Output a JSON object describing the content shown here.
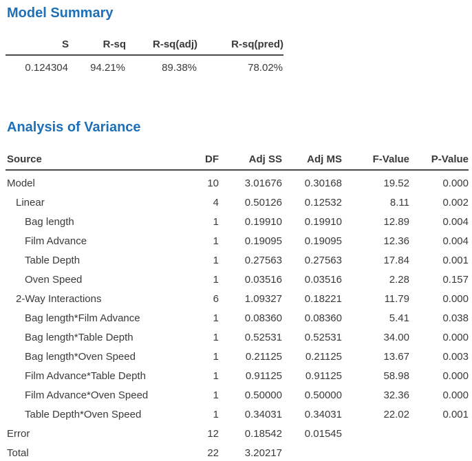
{
  "accent_color": "#1d70b8",
  "text_color": "#3a3a3a",
  "rule_color": "#4a4a4a",
  "model_summary": {
    "title": "Model Summary",
    "columns": [
      "S",
      "R-sq",
      "R-sq(adj)",
      "R-sq(pred)"
    ],
    "values": [
      "0.124304",
      "94.21%",
      "89.38%",
      "78.02%"
    ]
  },
  "anova": {
    "title": "Analysis of Variance",
    "columns": [
      "Source",
      "DF",
      "Adj SS",
      "Adj MS",
      "F-Value",
      "P-Value"
    ],
    "rows": [
      {
        "source": "Model",
        "indent": 0,
        "df": "10",
        "adj_ss": "3.01676",
        "adj_ms": "0.30168",
        "f_value": "19.52",
        "p_value": "0.000"
      },
      {
        "source": "Linear",
        "indent": 1,
        "df": "4",
        "adj_ss": "0.50126",
        "adj_ms": "0.12532",
        "f_value": "8.11",
        "p_value": "0.002"
      },
      {
        "source": "Bag length",
        "indent": 2,
        "df": "1",
        "adj_ss": "0.19910",
        "adj_ms": "0.19910",
        "f_value": "12.89",
        "p_value": "0.004"
      },
      {
        "source": "Film Advance",
        "indent": 2,
        "df": "1",
        "adj_ss": "0.19095",
        "adj_ms": "0.19095",
        "f_value": "12.36",
        "p_value": "0.004"
      },
      {
        "source": "Table Depth",
        "indent": 2,
        "df": "1",
        "adj_ss": "0.27563",
        "adj_ms": "0.27563",
        "f_value": "17.84",
        "p_value": "0.001"
      },
      {
        "source": "Oven Speed",
        "indent": 2,
        "df": "1",
        "adj_ss": "0.03516",
        "adj_ms": "0.03516",
        "f_value": "2.28",
        "p_value": "0.157"
      },
      {
        "source": "2-Way Interactions",
        "indent": 1,
        "df": "6",
        "adj_ss": "1.09327",
        "adj_ms": "0.18221",
        "f_value": "11.79",
        "p_value": "0.000"
      },
      {
        "source": "Bag length*Film Advance",
        "indent": 2,
        "df": "1",
        "adj_ss": "0.08360",
        "adj_ms": "0.08360",
        "f_value": "5.41",
        "p_value": "0.038"
      },
      {
        "source": "Bag length*Table Depth",
        "indent": 2,
        "df": "1",
        "adj_ss": "0.52531",
        "adj_ms": "0.52531",
        "f_value": "34.00",
        "p_value": "0.000"
      },
      {
        "source": "Bag length*Oven Speed",
        "indent": 2,
        "df": "1",
        "adj_ss": "0.21125",
        "adj_ms": "0.21125",
        "f_value": "13.67",
        "p_value": "0.003"
      },
      {
        "source": "Film Advance*Table Depth",
        "indent": 2,
        "df": "1",
        "adj_ss": "0.91125",
        "adj_ms": "0.91125",
        "f_value": "58.98",
        "p_value": "0.000"
      },
      {
        "source": "Film Advance*Oven Speed",
        "indent": 2,
        "df": "1",
        "adj_ss": "0.50000",
        "adj_ms": "0.50000",
        "f_value": "32.36",
        "p_value": "0.000"
      },
      {
        "source": "Table Depth*Oven Speed",
        "indent": 2,
        "df": "1",
        "adj_ss": "0.34031",
        "adj_ms": "0.34031",
        "f_value": "22.02",
        "p_value": "0.001"
      },
      {
        "source": "Error",
        "indent": 0,
        "df": "12",
        "adj_ss": "0.18542",
        "adj_ms": "0.01545",
        "f_value": "",
        "p_value": ""
      },
      {
        "source": "Total",
        "indent": 0,
        "df": "22",
        "adj_ss": "3.20217",
        "adj_ms": "",
        "f_value": "",
        "p_value": ""
      }
    ]
  }
}
